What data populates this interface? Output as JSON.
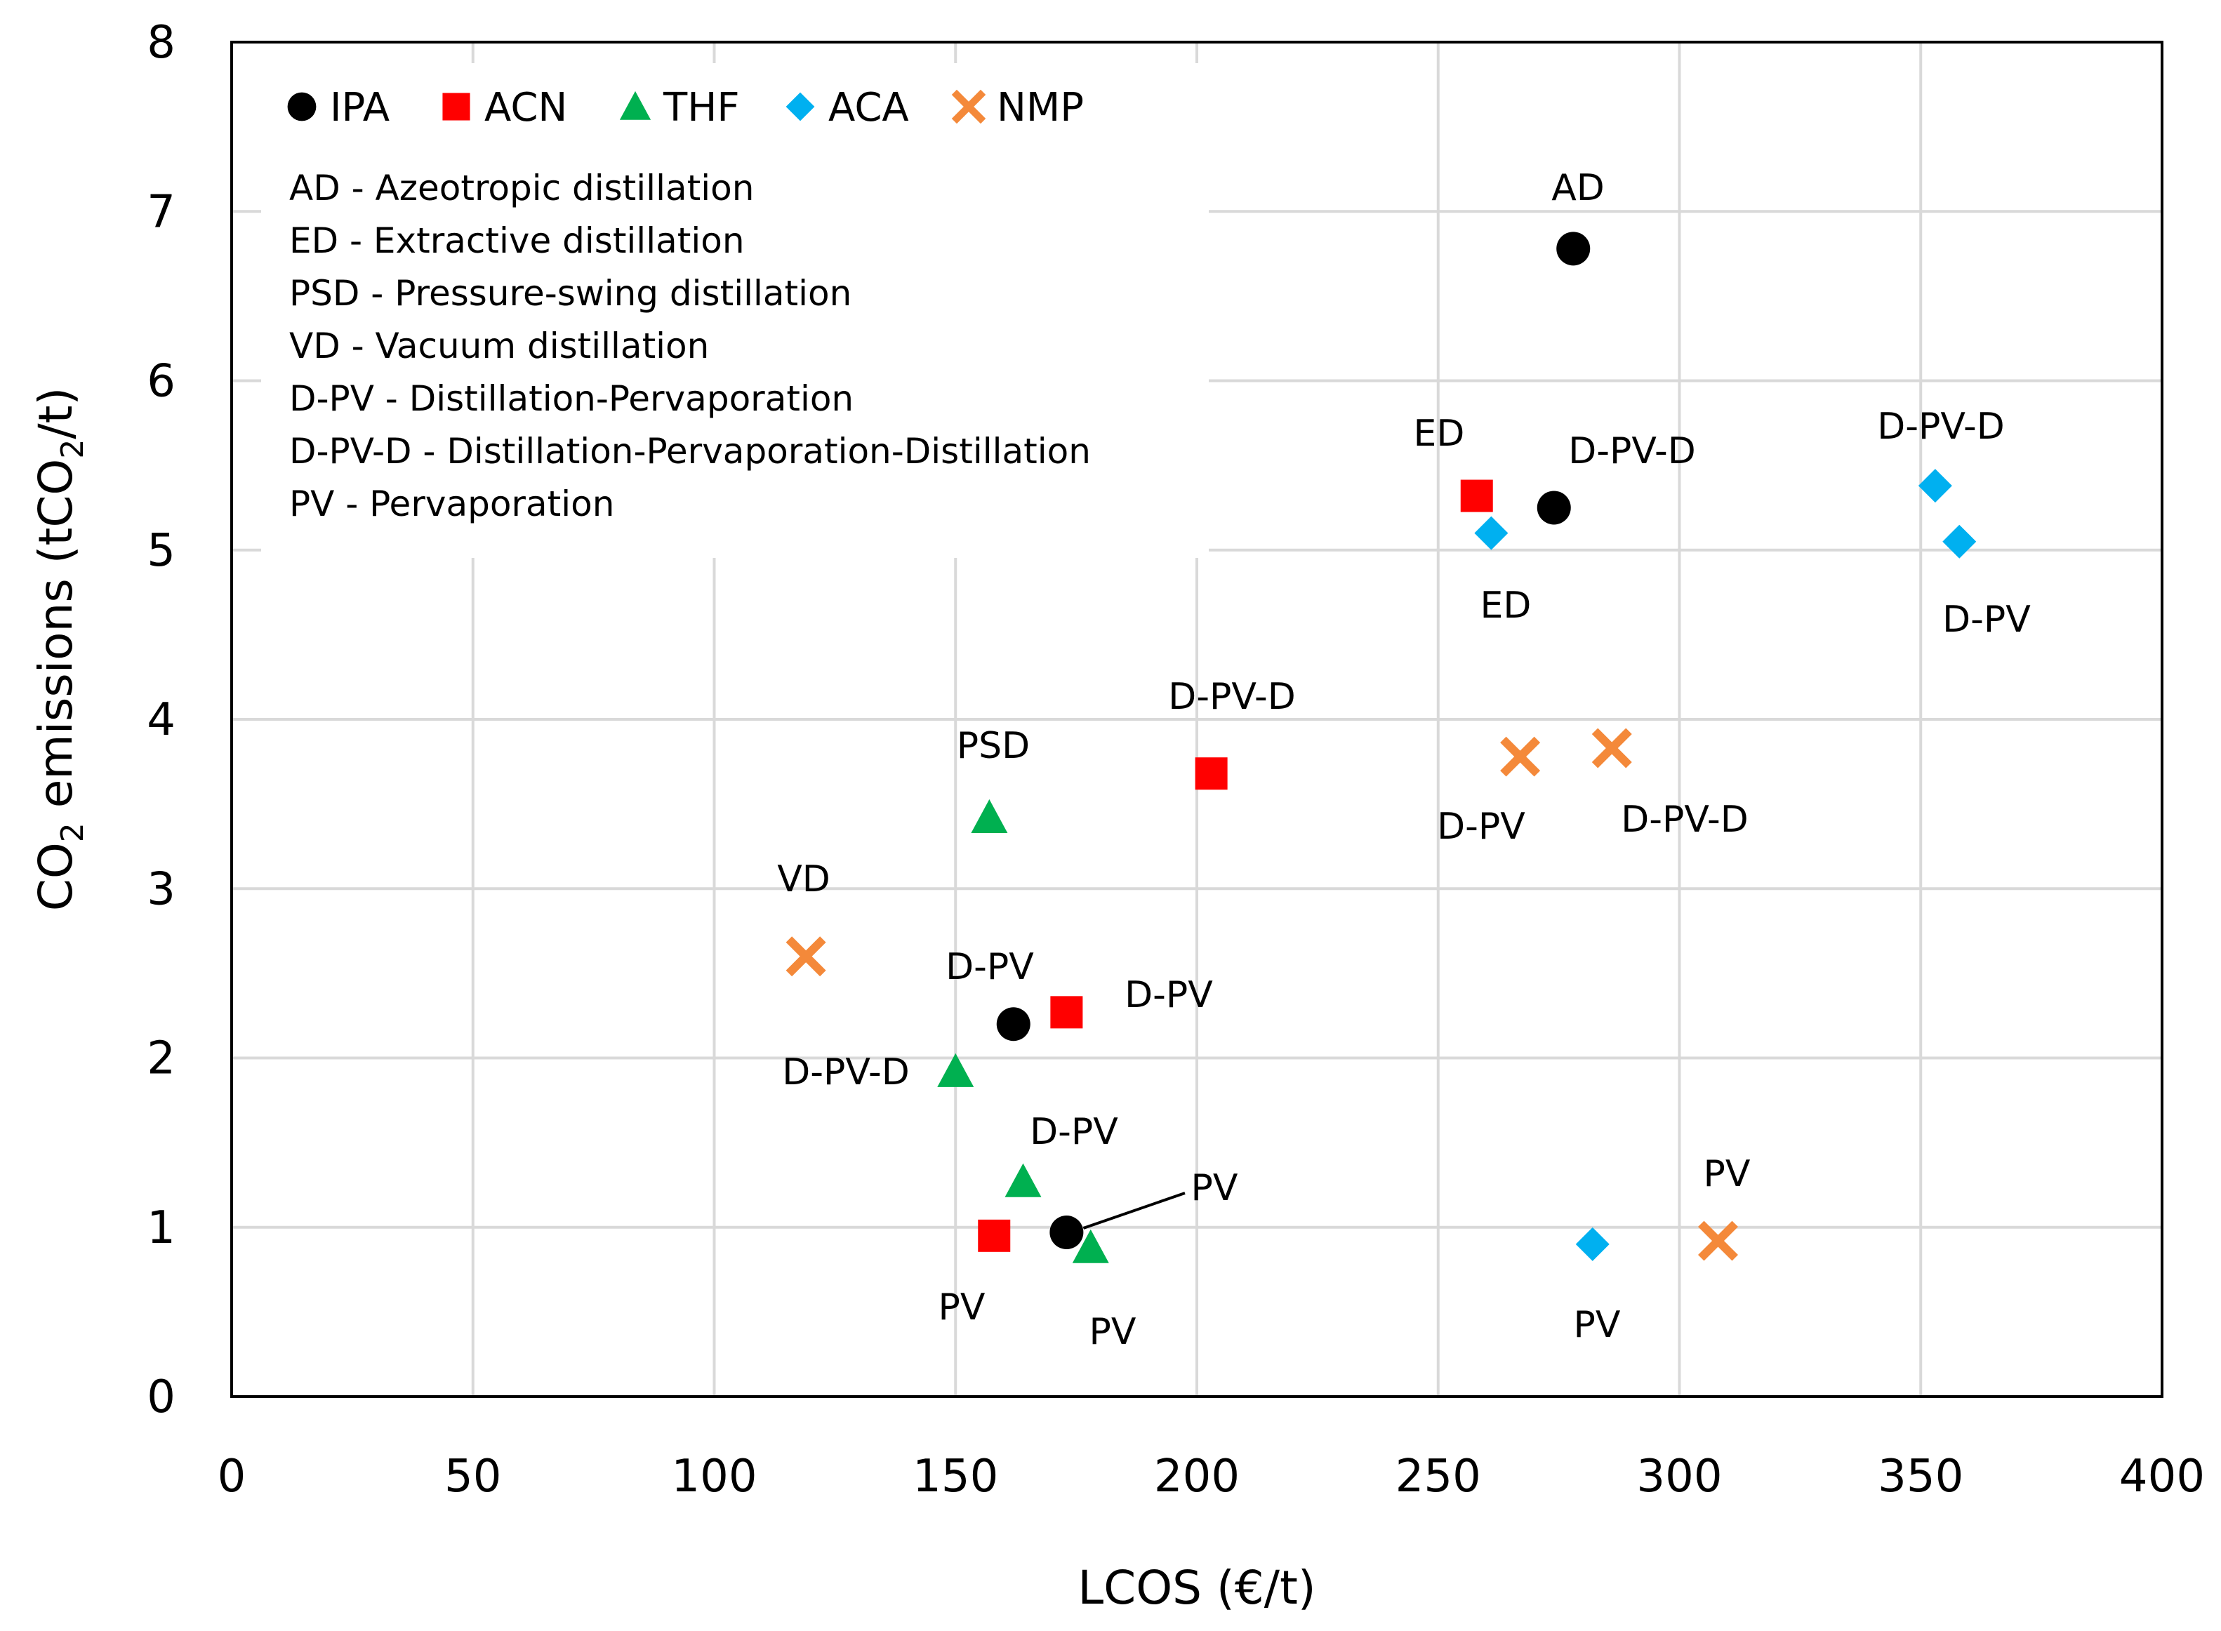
{
  "chart_data": {
    "type": "scatter",
    "xlabel": "LCOS (€/t)",
    "ylabel": {
      "pre": "CO",
      "sub": "2",
      "mid": " emissions (tCO",
      "sub2": "2",
      "post": "/t)"
    },
    "xlim": [
      0,
      400
    ],
    "ylim": [
      0,
      8
    ],
    "x_ticks": [
      "0",
      "50",
      "100",
      "150",
      "200",
      "250",
      "300",
      "350",
      "400"
    ],
    "y_ticks": [
      "0",
      "1",
      "2",
      "3",
      "4",
      "5",
      "6",
      "7",
      "8"
    ],
    "grid": true,
    "legend_position": "top-left",
    "series": [
      {
        "name": "IPA",
        "marker": "circle",
        "color": "#000000",
        "points": [
          {
            "x": 278,
            "y": 6.78,
            "label": "AD"
          },
          {
            "x": 274,
            "y": 5.25,
            "label": "D-PV-D"
          },
          {
            "x": 162,
            "y": 2.2,
            "label": "D-PV"
          },
          {
            "x": 173,
            "y": 0.97,
            "label": "PV"
          }
        ]
      },
      {
        "name": "ACN",
        "marker": "square",
        "color": "#ff0000",
        "points": [
          {
            "x": 258,
            "y": 5.32,
            "label": "ED"
          },
          {
            "x": 203,
            "y": 3.68,
            "label": "D-PV-D"
          },
          {
            "x": 173,
            "y": 2.27,
            "label": "D-PV"
          },
          {
            "x": 158,
            "y": 0.95,
            "label": "PV"
          }
        ]
      },
      {
        "name": "THF",
        "marker": "triangle",
        "color": "#00b050",
        "points": [
          {
            "x": 157,
            "y": 3.42,
            "label": "PSD"
          },
          {
            "x": 150,
            "y": 1.92,
            "label": "D-PV-D"
          },
          {
            "x": 164,
            "y": 1.27,
            "label": "D-PV"
          },
          {
            "x": 178,
            "y": 0.88,
            "label": "PV"
          }
        ]
      },
      {
        "name": "ACA",
        "marker": "diamond",
        "color": "#00b0f0",
        "points": [
          {
            "x": 261,
            "y": 5.1,
            "label": "ED"
          },
          {
            "x": 353,
            "y": 5.38,
            "label": "D-PV-D"
          },
          {
            "x": 358,
            "y": 5.05,
            "label": "D-PV"
          },
          {
            "x": 282,
            "y": 0.9,
            "label": "PV"
          }
        ]
      },
      {
        "name": "NMP",
        "marker": "x",
        "color": "#f4893a",
        "points": [
          {
            "x": 119,
            "y": 2.6,
            "label": "VD"
          },
          {
            "x": 267,
            "y": 3.78,
            "label": "D-PV"
          },
          {
            "x": 286,
            "y": 3.83,
            "label": "D-PV-D"
          },
          {
            "x": 308,
            "y": 0.92,
            "label": "PV"
          }
        ]
      }
    ],
    "abbreviations": [
      "AD - Azeotropic distillation",
      "ED - Extractive distillation",
      "PSD - Pressure-swing distillation",
      "VD - Vacuum distillation",
      "D-PV - Distillation-Pervaporation",
      "D-PV-D - Distillation-Pervaporation-Distillation",
      "PV - Pervaporation"
    ]
  }
}
